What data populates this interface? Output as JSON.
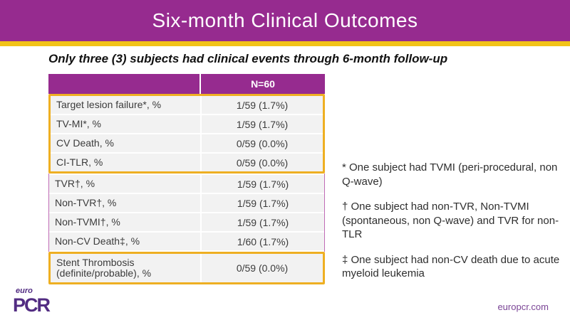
{
  "slide": {
    "title": "Six-month Clinical Outcomes",
    "subtitle": "Only three (3) subjects had clinical events through 6-month follow-up"
  },
  "table": {
    "col_header": "N=60",
    "rows": [
      {
        "label": "Target lesion failure*, %",
        "value": "1/59 (1.7%)"
      },
      {
        "label": "TV-MI*, %",
        "value": "1/59 (1.7%)"
      },
      {
        "label": "CV Death, %",
        "value": "0/59 (0.0%)"
      },
      {
        "label": "CI-TLR, %",
        "value": "0/59 (0.0%)"
      },
      {
        "label": "TVR†, %",
        "value": "1/59 (1.7%)"
      },
      {
        "label": "Non-TVR†, %",
        "value": "1/59 (1.7%)"
      },
      {
        "label": "Non-TVMI†, %",
        "value": "1/59 (1.7%)"
      },
      {
        "label": "Non-CV Death‡, %",
        "value": "1/60 (1.7%)"
      },
      {
        "label": "Stent Thrombosis (definite/probable), %",
        "value": "0/59 (0.0%)"
      }
    ],
    "highlight_groups": "rows 1-4 and row 9 outlined in gold"
  },
  "footnotes": [
    "* One subject had TVMI (peri-procedural, non Q-wave)",
    "† One subject had non-TVR, Non-TVMI (spontaneous, non Q-wave) and TVR for non-TLR",
    "‡ One subject had non-CV death due to acute myeloid leukemia"
  ],
  "logo": {
    "euro": "euro",
    "pcr": "PCR"
  },
  "footer": {
    "website": "europcr.com"
  },
  "colors": {
    "header_purple": "#962B8F",
    "gold_stripe": "#F2C318",
    "highlight_gold": "#EEAF22",
    "row_gray": "#F2F2F2",
    "table_side_purple": "#C06BB6",
    "logo_purple": "#522C82",
    "link_purple": "#7B4596"
  }
}
